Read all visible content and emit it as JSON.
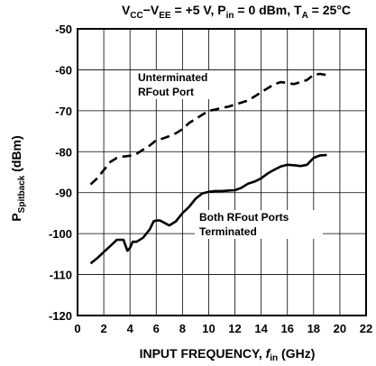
{
  "chart_data": {
    "type": "line",
    "title": {
      "main": "V",
      "main_sub": "CC",
      "minus": "−V",
      "minus_sub": "EE",
      "rest1": " = +5 V, P",
      "rest1_sub": "in",
      "rest2": " = 0 dBm, T",
      "rest2_sub": "A",
      "rest3": " = 25°C"
    },
    "xlabel": {
      "prefix": "INPUT FREQUENCY, ",
      "symbol": "f",
      "symbol_sub": "in",
      "suffix": " (GHz)"
    },
    "ylabel": {
      "main": "P",
      "sub": "Spitback",
      "suffix": " (dBm)"
    },
    "xlim": [
      0,
      22
    ],
    "ylim": [
      -120,
      -50
    ],
    "x_ticks": [
      "0",
      "2",
      "4",
      "6",
      "8",
      "10",
      "12",
      "14",
      "16",
      "18",
      "20",
      "22"
    ],
    "y_ticks": [
      "-50",
      "-60",
      "-70",
      "-80",
      "-90",
      "-100",
      "-110",
      "-120"
    ],
    "grid": true,
    "series": [
      {
        "style": "dashed",
        "x": [
          1,
          1.5,
          2,
          2.5,
          3,
          3.5,
          4,
          4.5,
          5,
          5.5,
          6,
          6.5,
          7,
          7.5,
          8,
          8.5,
          9,
          9.5,
          10,
          10.5,
          11,
          11.5,
          12,
          12.5,
          13,
          13.5,
          14,
          14.5,
          15,
          15.5,
          16,
          16.5,
          17,
          17.5,
          18,
          18.5,
          19
        ],
        "y": [
          -88,
          -86.5,
          -84.5,
          -82.5,
          -81.5,
          -81.2,
          -81,
          -80.5,
          -79.5,
          -78.5,
          -77.2,
          -76.8,
          -76.2,
          -75.5,
          -74.5,
          -73,
          -72,
          -71,
          -70,
          -69.7,
          -69.3,
          -69,
          -68.5,
          -68,
          -67.5,
          -66.5,
          -65.5,
          -64.5,
          -63.5,
          -63,
          -63.2,
          -63.5,
          -63,
          -62.5,
          -61.2,
          -61,
          -61.3
        ]
      },
      {
        "style": "solid",
        "x": [
          1,
          1.5,
          2,
          2.5,
          3,
          3.5,
          3.8,
          4,
          4.2,
          4.5,
          5,
          5.5,
          5.8,
          6,
          6.3,
          6.7,
          7,
          7.5,
          8,
          8.5,
          9,
          9.5,
          10,
          10.5,
          11,
          11.5,
          12,
          12.5,
          13,
          13.5,
          14,
          14.5,
          15,
          15.5,
          16,
          16.5,
          17,
          17.5,
          18,
          18.5,
          19
        ],
        "y": [
          -107.3,
          -106,
          -104.5,
          -103,
          -101.5,
          -101.5,
          -104.2,
          -103.5,
          -102,
          -102,
          -101,
          -99,
          -97,
          -96.8,
          -96.8,
          -97.5,
          -98,
          -97,
          -95,
          -93.5,
          -91.5,
          -90.2,
          -89.8,
          -89.6,
          -89.6,
          -89.5,
          -89.4,
          -88.8,
          -87.8,
          -87.3,
          -86.5,
          -85.3,
          -84.4,
          -83.6,
          -83.2,
          -83.3,
          -83.5,
          -83.2,
          -81.5,
          -80.9,
          -80.8
        ]
      }
    ],
    "annotations": [
      {
        "lines": [
          "Unterminated",
          "RFout Port"
        ],
        "series_index": 0
      },
      {
        "lines": [
          "Both RFout Ports",
          "Terminated"
        ],
        "series_index": 1
      }
    ]
  }
}
